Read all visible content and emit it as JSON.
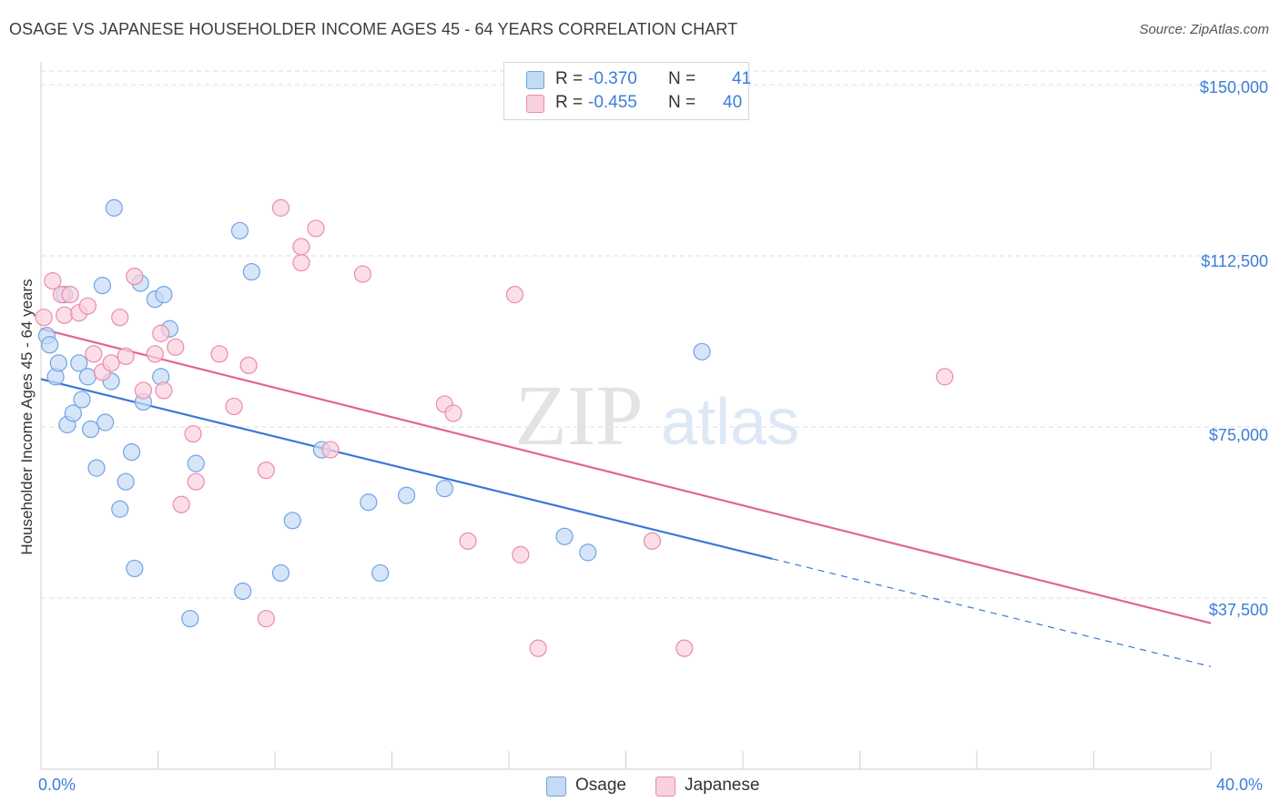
{
  "title": "OSAGE VS JAPANESE HOUSEHOLDER INCOME AGES 45 - 64 YEARS CORRELATION CHART",
  "source": "Source: ZipAtlas.com",
  "watermark": {
    "zip": "ZIP",
    "atlas": "atlas"
  },
  "legend": {
    "rows": [
      {
        "r_label": "R =",
        "r_value": "-0.370",
        "n_label": "N =",
        "n_value": "41",
        "color": "#a9c8f0"
      },
      {
        "r_label": "R =",
        "r_value": "-0.455",
        "n_label": "N =",
        "n_value": "40",
        "color": "#f5b8cb"
      }
    ]
  },
  "bottom_legend": [
    {
      "label": "Osage",
      "color": "#a9c8f0"
    },
    {
      "label": "Japanese",
      "color": "#f5b8cb"
    }
  ],
  "chart_data": {
    "type": "scatter",
    "title": "OSAGE VS JAPANESE HOUSEHOLDER INCOME AGES 45 - 64 YEARS CORRELATION CHART",
    "xlabel": "",
    "ylabel": "Householder Income Ages 45 - 64 years",
    "xlim": [
      0,
      40
    ],
    "ylim": [
      0,
      153000
    ],
    "x_tick_labels": [
      "0.0%",
      "40.0%"
    ],
    "y_ticks": [
      37500,
      75000,
      112500,
      150000
    ],
    "y_tick_labels": [
      "$37,500",
      "$75,000",
      "$112,500",
      "$150,000"
    ],
    "grid": true,
    "series": [
      {
        "name": "Osage",
        "color": "#6fa4e4",
        "fill": "#c4daf5",
        "points": [
          [
            0.2,
            95000
          ],
          [
            0.3,
            93000
          ],
          [
            0.5,
            86000
          ],
          [
            0.6,
            89000
          ],
          [
            0.8,
            104000
          ],
          [
            0.9,
            75500
          ],
          [
            1.1,
            78000
          ],
          [
            1.3,
            89000
          ],
          [
            1.4,
            81000
          ],
          [
            1.6,
            86000
          ],
          [
            1.7,
            74500
          ],
          [
            1.9,
            66000
          ],
          [
            2.1,
            106000
          ],
          [
            2.2,
            76000
          ],
          [
            2.4,
            85000
          ],
          [
            2.5,
            123000
          ],
          [
            2.7,
            57000
          ],
          [
            2.9,
            63000
          ],
          [
            3.1,
            69500
          ],
          [
            3.2,
            44000
          ],
          [
            3.4,
            106500
          ],
          [
            3.5,
            80500
          ],
          [
            3.9,
            103000
          ],
          [
            4.1,
            86000
          ],
          [
            4.2,
            104000
          ],
          [
            4.4,
            96500
          ],
          [
            5.1,
            33000
          ],
          [
            5.3,
            67000
          ],
          [
            6.8,
            118000
          ],
          [
            6.9,
            39000
          ],
          [
            7.2,
            109000
          ],
          [
            8.2,
            43000
          ],
          [
            8.6,
            54500
          ],
          [
            9.6,
            70000
          ],
          [
            11.2,
            58500
          ],
          [
            11.6,
            43000
          ],
          [
            12.5,
            60000
          ],
          [
            13.8,
            61500
          ],
          [
            17.9,
            51000
          ],
          [
            18.7,
            47500
          ],
          [
            22.6,
            91500
          ]
        ]
      },
      {
        "name": "Japanese",
        "color": "#ec8aab",
        "fill": "#f9d0de",
        "points": [
          [
            0.1,
            99000
          ],
          [
            0.4,
            107000
          ],
          [
            0.7,
            104000
          ],
          [
            0.8,
            99500
          ],
          [
            1.0,
            104000
          ],
          [
            1.3,
            100000
          ],
          [
            1.6,
            101500
          ],
          [
            1.8,
            91000
          ],
          [
            2.1,
            87000
          ],
          [
            2.4,
            89000
          ],
          [
            2.7,
            99000
          ],
          [
            2.9,
            90500
          ],
          [
            3.2,
            108000
          ],
          [
            3.5,
            83000
          ],
          [
            3.9,
            91000
          ],
          [
            4.1,
            95500
          ],
          [
            4.2,
            83000
          ],
          [
            4.6,
            92500
          ],
          [
            4.8,
            58000
          ],
          [
            5.2,
            73500
          ],
          [
            5.3,
            63000
          ],
          [
            6.1,
            91000
          ],
          [
            6.6,
            79500
          ],
          [
            7.1,
            88500
          ],
          [
            7.7,
            65500
          ],
          [
            7.7,
            33000
          ],
          [
            8.2,
            123000
          ],
          [
            8.9,
            111000
          ],
          [
            8.9,
            114500
          ],
          [
            9.4,
            118500
          ],
          [
            9.9,
            70000
          ],
          [
            11.0,
            108500
          ],
          [
            13.8,
            80000
          ],
          [
            14.1,
            78000
          ],
          [
            14.6,
            50000
          ],
          [
            16.2,
            104000
          ],
          [
            16.4,
            47000
          ],
          [
            17.0,
            26500
          ],
          [
            20.9,
            50000
          ],
          [
            22.0,
            26500
          ],
          [
            30.9,
            86000
          ]
        ]
      }
    ],
    "trend_lines": [
      {
        "series": "Osage",
        "x_start": 0,
        "y_start": 85500,
        "x_solid_end": 25,
        "x_end": 40,
        "y_end": 22500
      },
      {
        "series": "Japanese",
        "x_start": 0,
        "y_start": 96500,
        "x_end": 40,
        "y_end": 32000
      }
    ]
  }
}
